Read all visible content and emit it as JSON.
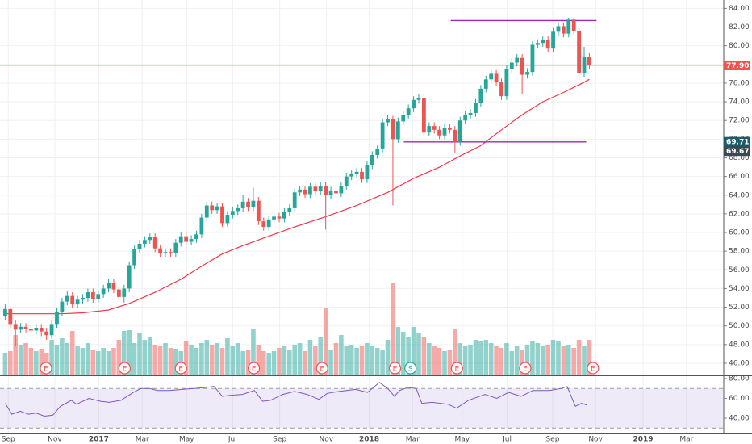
{
  "chart_data": {
    "type": "candlestick",
    "x": [
      0,
      1,
      2,
      3,
      4,
      5,
      6,
      7,
      8,
      9,
      10,
      11,
      12,
      13,
      14,
      15,
      16,
      17,
      18,
      19,
      20,
      21,
      22,
      23,
      24,
      25,
      26,
      27,
      28,
      29,
      30,
      31,
      32,
      33,
      34,
      35,
      36,
      37,
      38,
      39,
      40,
      41,
      42,
      43,
      44,
      45,
      46,
      47,
      48,
      49,
      50,
      51,
      52,
      53,
      54,
      55,
      56,
      57,
      58,
      59,
      60,
      61,
      62,
      63,
      64,
      65,
      66,
      67,
      68,
      69,
      70,
      71,
      72,
      73,
      74,
      75,
      76,
      77,
      78,
      79,
      80,
      81,
      82,
      83,
      84,
      85,
      86,
      87,
      88,
      89,
      90,
      91,
      92,
      93,
      94,
      95,
      96,
      97,
      98,
      99,
      100,
      101,
      102,
      103,
      104,
      105,
      106,
      107,
      108,
      109,
      110,
      111,
      112,
      113
    ],
    "open": [
      51.0,
      51.8,
      50.2,
      49.6,
      49.9,
      49.7,
      49.5,
      49.8,
      49.4,
      49.0,
      50.2,
      51.5,
      52.6,
      53.2,
      52.3,
      52.8,
      53.0,
      53.6,
      52.9,
      53.4,
      54.0,
      54.6,
      53.9,
      53.1,
      54.0,
      56.5,
      58.2,
      58.8,
      59.2,
      59.5,
      58.3,
      57.8,
      57.9,
      57.8,
      58.9,
      59.6,
      59.0,
      59.3,
      59.8,
      61.6,
      62.9,
      62.4,
      62.8,
      61.0,
      61.9,
      62.3,
      62.6,
      63.3,
      62.7,
      63.4,
      61.2,
      60.6,
      61.4,
      61.7,
      61.5,
      62.2,
      62.6,
      64.3,
      64.6,
      64.1,
      64.9,
      64.4,
      65.0,
      64.0,
      64.5,
      64.2,
      65.0,
      66.0,
      66.3,
      66.5,
      65.7,
      67.2,
      68.3,
      69.0,
      71.8,
      72.1,
      70.0,
      71.9,
      72.6,
      73.3,
      74.2,
      74.4,
      70.7,
      71.4,
      71.0,
      70.4,
      71.2,
      71.0,
      69.7,
      72.0,
      72.6,
      72.8,
      73.9,
      75.4,
      76.4,
      77.0,
      76.1,
      74.6,
      77.5,
      78.2,
      78.7,
      76.9,
      77.2,
      80.1,
      80.3,
      80.6,
      79.7,
      81.5,
      82.1,
      81.3,
      82.8,
      81.6,
      77.1,
      78.8
    ],
    "high": [
      52.3,
      52.0,
      50.6,
      50.3,
      50.3,
      50.1,
      50.2,
      50.2,
      49.8,
      50.6,
      51.9,
      53.0,
      53.7,
      53.6,
      53.2,
      53.4,
      54.0,
      54.0,
      53.8,
      54.4,
      55.0,
      55.0,
      54.3,
      54.4,
      56.9,
      58.6,
      59.2,
      59.6,
      59.9,
      59.9,
      58.7,
      58.3,
      58.3,
      59.3,
      60.0,
      60.0,
      59.7,
      60.2,
      62.0,
      63.3,
      63.3,
      63.2,
      63.2,
      62.3,
      62.7,
      63.0,
      64.0,
      63.7,
      64.8,
      63.8,
      61.6,
      61.8,
      62.1,
      62.1,
      62.6,
      63.0,
      64.7,
      65.0,
      65.0,
      65.3,
      65.3,
      65.4,
      65.4,
      64.9,
      64.9,
      65.4,
      66.4,
      66.7,
      66.9,
      66.9,
      67.6,
      68.7,
      69.4,
      72.2,
      72.6,
      72.5,
      72.3,
      73.0,
      73.7,
      74.6,
      74.8,
      74.8,
      71.8,
      71.8,
      71.4,
      71.6,
      71.6,
      71.4,
      72.4,
      73.0,
      73.2,
      74.3,
      75.8,
      76.8,
      77.4,
      77.4,
      76.5,
      77.9,
      78.6,
      79.1,
      79.1,
      77.6,
      80.5,
      80.7,
      81.0,
      81.0,
      81.9,
      82.5,
      82.5,
      83.0,
      83.0,
      82.0,
      79.9,
      79.2
    ],
    "low": [
      50.6,
      49.8,
      47.8,
      49.2,
      49.3,
      49.1,
      49.1,
      48.9,
      48.5,
      48.6,
      49.8,
      51.1,
      52.2,
      51.9,
      51.9,
      52.4,
      52.6,
      52.5,
      52.5,
      53.0,
      53.6,
      53.5,
      52.7,
      52.5,
      53.6,
      56.1,
      57.8,
      58.4,
      58.8,
      57.9,
      57.4,
      57.4,
      57.4,
      57.4,
      58.5,
      58.6,
      58.6,
      58.9,
      59.4,
      61.2,
      62.0,
      62.0,
      60.6,
      60.6,
      61.5,
      61.9,
      62.2,
      62.3,
      62.3,
      60.8,
      60.2,
      60.2,
      61.0,
      61.1,
      61.1,
      61.8,
      62.2,
      63.9,
      63.7,
      63.7,
      64.0,
      64.0,
      60.3,
      63.6,
      63.8,
      63.8,
      64.6,
      65.6,
      65.9,
      65.3,
      65.3,
      66.8,
      67.9,
      68.6,
      71.4,
      62.9,
      69.6,
      71.5,
      72.2,
      72.9,
      73.8,
      70.3,
      70.3,
      70.6,
      70.0,
      70.0,
      70.6,
      68.5,
      69.3,
      71.6,
      72.2,
      72.4,
      73.5,
      75.0,
      76.0,
      75.7,
      74.2,
      74.2,
      77.1,
      77.8,
      74.8,
      76.5,
      76.8,
      79.7,
      79.9,
      79.3,
      79.3,
      81.1,
      80.9,
      80.9,
      81.2,
      76.3,
      76.6,
      77.5
    ],
    "close": [
      51.8,
      50.2,
      49.6,
      49.9,
      49.7,
      49.5,
      49.8,
      49.4,
      49.0,
      50.2,
      51.5,
      52.6,
      53.2,
      52.3,
      52.8,
      53.0,
      53.6,
      52.9,
      53.4,
      54.0,
      54.6,
      53.9,
      53.1,
      54.0,
      56.5,
      58.2,
      58.8,
      59.2,
      59.5,
      58.3,
      57.8,
      57.9,
      57.8,
      58.9,
      59.6,
      59.0,
      59.3,
      59.8,
      61.6,
      62.9,
      62.4,
      62.8,
      61.0,
      61.9,
      62.3,
      62.6,
      63.3,
      62.7,
      63.4,
      61.2,
      60.6,
      61.4,
      61.7,
      61.5,
      62.2,
      62.6,
      64.3,
      64.6,
      64.1,
      64.9,
      64.4,
      65.0,
      64.0,
      64.5,
      64.2,
      65.0,
      66.0,
      66.3,
      66.5,
      65.7,
      67.2,
      68.3,
      69.0,
      71.8,
      72.1,
      70.0,
      71.9,
      72.6,
      73.3,
      74.2,
      74.4,
      70.7,
      71.4,
      71.0,
      70.4,
      71.2,
      71.0,
      69.7,
      72.0,
      72.6,
      72.8,
      73.9,
      75.4,
      76.4,
      77.0,
      76.1,
      74.6,
      77.5,
      78.2,
      78.7,
      76.9,
      77.2,
      80.1,
      80.3,
      80.6,
      79.7,
      81.5,
      82.1,
      81.3,
      82.8,
      81.6,
      77.1,
      78.8,
      77.9
    ],
    "volume": [
      28,
      30,
      50,
      38,
      40,
      34,
      30,
      33,
      28,
      44,
      38,
      46,
      40,
      55,
      36,
      34,
      40,
      32,
      30,
      34,
      30,
      34,
      44,
      55,
      56,
      40,
      52,
      44,
      48,
      38,
      36,
      40,
      34,
      33,
      30,
      42,
      38,
      34,
      40,
      44,
      38,
      40,
      34,
      46,
      36,
      40,
      30,
      32,
      58,
      38,
      30,
      28,
      30,
      34,
      36,
      32,
      38,
      40,
      30,
      44,
      36,
      48,
      83,
      32,
      40,
      50,
      36,
      38,
      34,
      36,
      40,
      36,
      34,
      32,
      44,
      115,
      60,
      54,
      48,
      60,
      52,
      48,
      40,
      36,
      34,
      30,
      32,
      58,
      40,
      36,
      38,
      44,
      42,
      44,
      40,
      36,
      34,
      40,
      30,
      36,
      32,
      38,
      42,
      40,
      36,
      38,
      44,
      42,
      36,
      38,
      34,
      44,
      36,
      44
    ],
    "volume_ylim": [
      0,
      120
    ],
    "up_color": "#26a69a",
    "down_color": "#ef5350",
    "ma": {
      "color": "#f23645",
      "x": [
        0,
        11,
        15,
        20,
        24,
        29,
        34,
        38,
        42,
        46,
        51,
        56,
        62,
        68,
        74,
        79,
        84,
        88,
        92,
        96,
        100,
        104,
        108,
        112,
        113
      ],
      "values": [
        51.3,
        51.3,
        51.4,
        51.7,
        52.4,
        53.6,
        55.0,
        56.4,
        57.7,
        58.6,
        59.6,
        60.6,
        61.7,
        62.9,
        64.3,
        65.8,
        67.0,
        68.2,
        69.3,
        71.0,
        72.6,
        74.0,
        75.0,
        76.1,
        76.4
      ]
    },
    "hlines": [
      {
        "value": 82.7,
        "x": [
          86.2,
          114.4
        ],
        "color": "#9c27b0"
      },
      {
        "value": 69.7,
        "x": [
          77.1,
          112.4
        ],
        "color": "#9c27b0"
      }
    ],
    "last_price": {
      "value": 77.9,
      "label": "77.90",
      "color": "#ef5350"
    },
    "price_labels": [
      {
        "value": 69.71,
        "label": "69.71",
        "color": "#1c5d6b"
      },
      {
        "value": 69.67,
        "label": "69.67",
        "color": "#3b4a52"
      }
    ],
    "events": [
      {
        "x": 7.9,
        "label": "E",
        "color": "#ef5350"
      },
      {
        "x": 23.1,
        "label": "E",
        "color": "#ef5350"
      },
      {
        "x": 34.0,
        "label": "E",
        "color": "#ef5350"
      },
      {
        "x": 48.1,
        "label": "E",
        "color": "#ef5350"
      },
      {
        "x": 61.3,
        "label": "E",
        "color": "#ef5350"
      },
      {
        "x": 75.4,
        "label": "E",
        "color": "#ef5350"
      },
      {
        "x": 78.4,
        "label": "S",
        "color": "#26a69a"
      },
      {
        "x": 87.4,
        "label": "E",
        "color": "#ef5350"
      },
      {
        "x": 100.6,
        "label": "E",
        "color": "#ef5350"
      },
      {
        "x": 113.7,
        "label": "E",
        "color": "#ef5350"
      }
    ],
    "xlim": [
      -1,
      139
    ],
    "xticks": [
      {
        "value": 0.6,
        "label": "Sep"
      },
      {
        "value": 9.6,
        "label": "Nov"
      },
      {
        "value": 18.1,
        "label": "2017"
      },
      {
        "value": 26.5,
        "label": "Mar"
      },
      {
        "value": 35.1,
        "label": "May"
      },
      {
        "value": 44.0,
        "label": "Jul"
      },
      {
        "value": 53.1,
        "label": "Sep"
      },
      {
        "value": 62.1,
        "label": "Nov"
      },
      {
        "value": 70.4,
        "label": "2018"
      },
      {
        "value": 78.8,
        "label": "Mar"
      },
      {
        "value": 88.4,
        "label": "May"
      },
      {
        "value": 97.1,
        "label": "Jul"
      },
      {
        "value": 105.9,
        "label": "Sep"
      },
      {
        "value": 114.2,
        "label": "Nov"
      },
      {
        "value": 123.4,
        "label": "2019"
      },
      {
        "value": 131.8,
        "label": "Mar"
      }
    ],
    "ylim": [
      44.7,
      84.9
    ],
    "yticks": [
      {
        "value": 46,
        "label": "46.00"
      },
      {
        "value": 48,
        "label": "48.00"
      },
      {
        "value": 50,
        "label": "50.00"
      },
      {
        "value": 52,
        "label": "52.00"
      },
      {
        "value": 54,
        "label": "54.00"
      },
      {
        "value": 56,
        "label": "56.00"
      },
      {
        "value": 58,
        "label": "58.00"
      },
      {
        "value": 60,
        "label": "60.00"
      },
      {
        "value": 62,
        "label": "62.00"
      },
      {
        "value": 64,
        "label": "64.00"
      },
      {
        "value": 66,
        "label": "66.00"
      },
      {
        "value": 68,
        "label": "68.00"
      },
      {
        "value": 70,
        "label": "70.00"
      },
      {
        "value": 72,
        "label": "72.00"
      },
      {
        "value": 74,
        "label": "74.00"
      },
      {
        "value": 76,
        "label": "76.00"
      },
      {
        "value": 78,
        "label": "78.00"
      },
      {
        "value": 80,
        "label": "80.00"
      },
      {
        "value": 82,
        "label": "82.00"
      },
      {
        "value": 84,
        "label": "84.00"
      }
    ],
    "grid": true,
    "rsi": {
      "color": "#7e57c2",
      "band": [
        30,
        70
      ],
      "band_color": "#9575cd",
      "x": [
        0,
        1.3,
        2.9,
        4.5,
        6.0,
        7.6,
        9.2,
        10.7,
        12.8,
        13.8,
        16.2,
        18.5,
        20.1,
        22.4,
        24.8,
        26.3,
        27.9,
        29.5,
        31.8,
        34.2,
        36.5,
        38.8,
        40.4,
        42.0,
        43.5,
        45.9,
        48.2,
        49.8,
        51.3,
        53.7,
        56.0,
        58.4,
        60.7,
        62.3,
        64.6,
        67.8,
        70.1,
        72.4,
        74.0,
        75.3,
        76.3,
        77.9,
        79.5,
        80.6,
        82.6,
        85.7,
        87.3,
        89.6,
        92.8,
        95.1,
        97.4,
        99.8,
        102.1,
        105.3,
        107.6,
        108.7,
        110.3,
        111.5,
        112.6
      ],
      "values": [
        55,
        44,
        47,
        44,
        45,
        42,
        43,
        52,
        58,
        54,
        60,
        57,
        56,
        58,
        66,
        70,
        70,
        68,
        68,
        69,
        70,
        71,
        72,
        62,
        63,
        64,
        68,
        57,
        58,
        64,
        67,
        64,
        59,
        65,
        67,
        69,
        66,
        76,
        70,
        62,
        68,
        71,
        70,
        55,
        56,
        54,
        50,
        58,
        64,
        60,
        66,
        62,
        68,
        68,
        70,
        72,
        52,
        55,
        53
      ],
      "ylim": [
        25.3,
        82.4
      ],
      "yticks": [
        {
          "value": 40,
          "label": "40.00"
        },
        {
          "value": 60,
          "label": "60.00"
        },
        {
          "value": 80,
          "label": "80.00"
        }
      ]
    }
  }
}
